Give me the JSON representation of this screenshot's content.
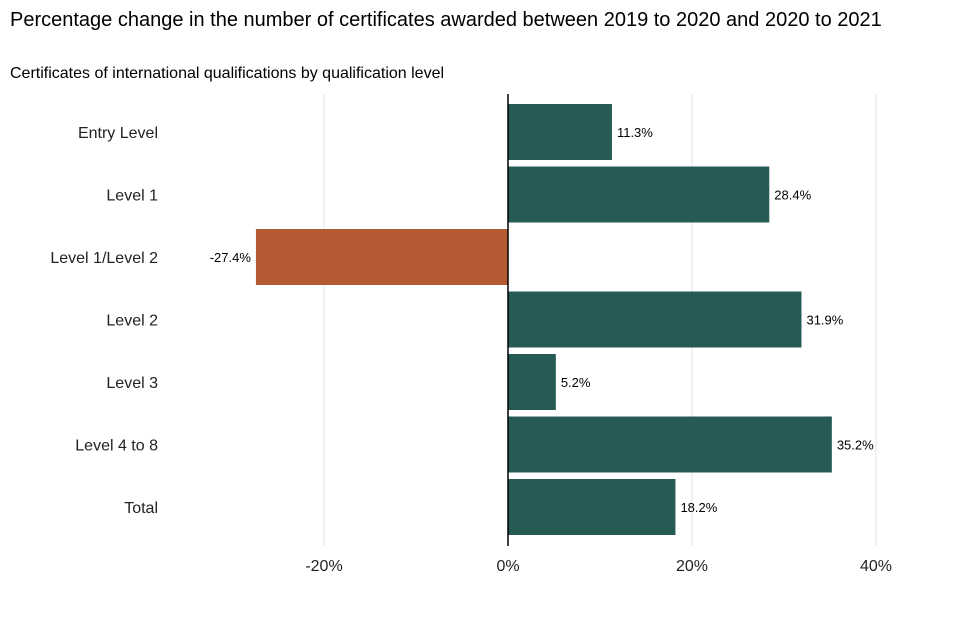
{
  "chart_data": {
    "type": "bar",
    "orientation": "horizontal",
    "title": "Percentage change in the number of certificates awarded between 2019 to 2020 and 2020 to 2021",
    "subtitle": "Certificates of international qualifications by qualification level",
    "xlabel": "",
    "ylabel": "",
    "categories": [
      "Entry Level",
      "Level 1",
      "Level 1/Level 2",
      "Level 2",
      "Level 3",
      "Level 4 to 8",
      "Total"
    ],
    "values": [
      11.3,
      28.4,
      -27.4,
      31.9,
      5.2,
      35.2,
      18.2
    ],
    "data_labels": [
      "11.3%",
      "28.4%",
      "-27.4%",
      "31.9%",
      "5.2%",
      "35.2%",
      "18.2%"
    ],
    "xlim": [
      -37,
      45
    ],
    "x_ticks": [
      -20,
      0,
      20,
      40
    ],
    "x_tick_labels": [
      "-20%",
      "0%",
      "20%",
      "40%"
    ],
    "grid": "vertical",
    "legend": "none",
    "colors": {
      "positive": "#265b55",
      "negative": "#b45a32",
      "grid": "#e3e3e3",
      "zero_line": "#000000"
    }
  }
}
